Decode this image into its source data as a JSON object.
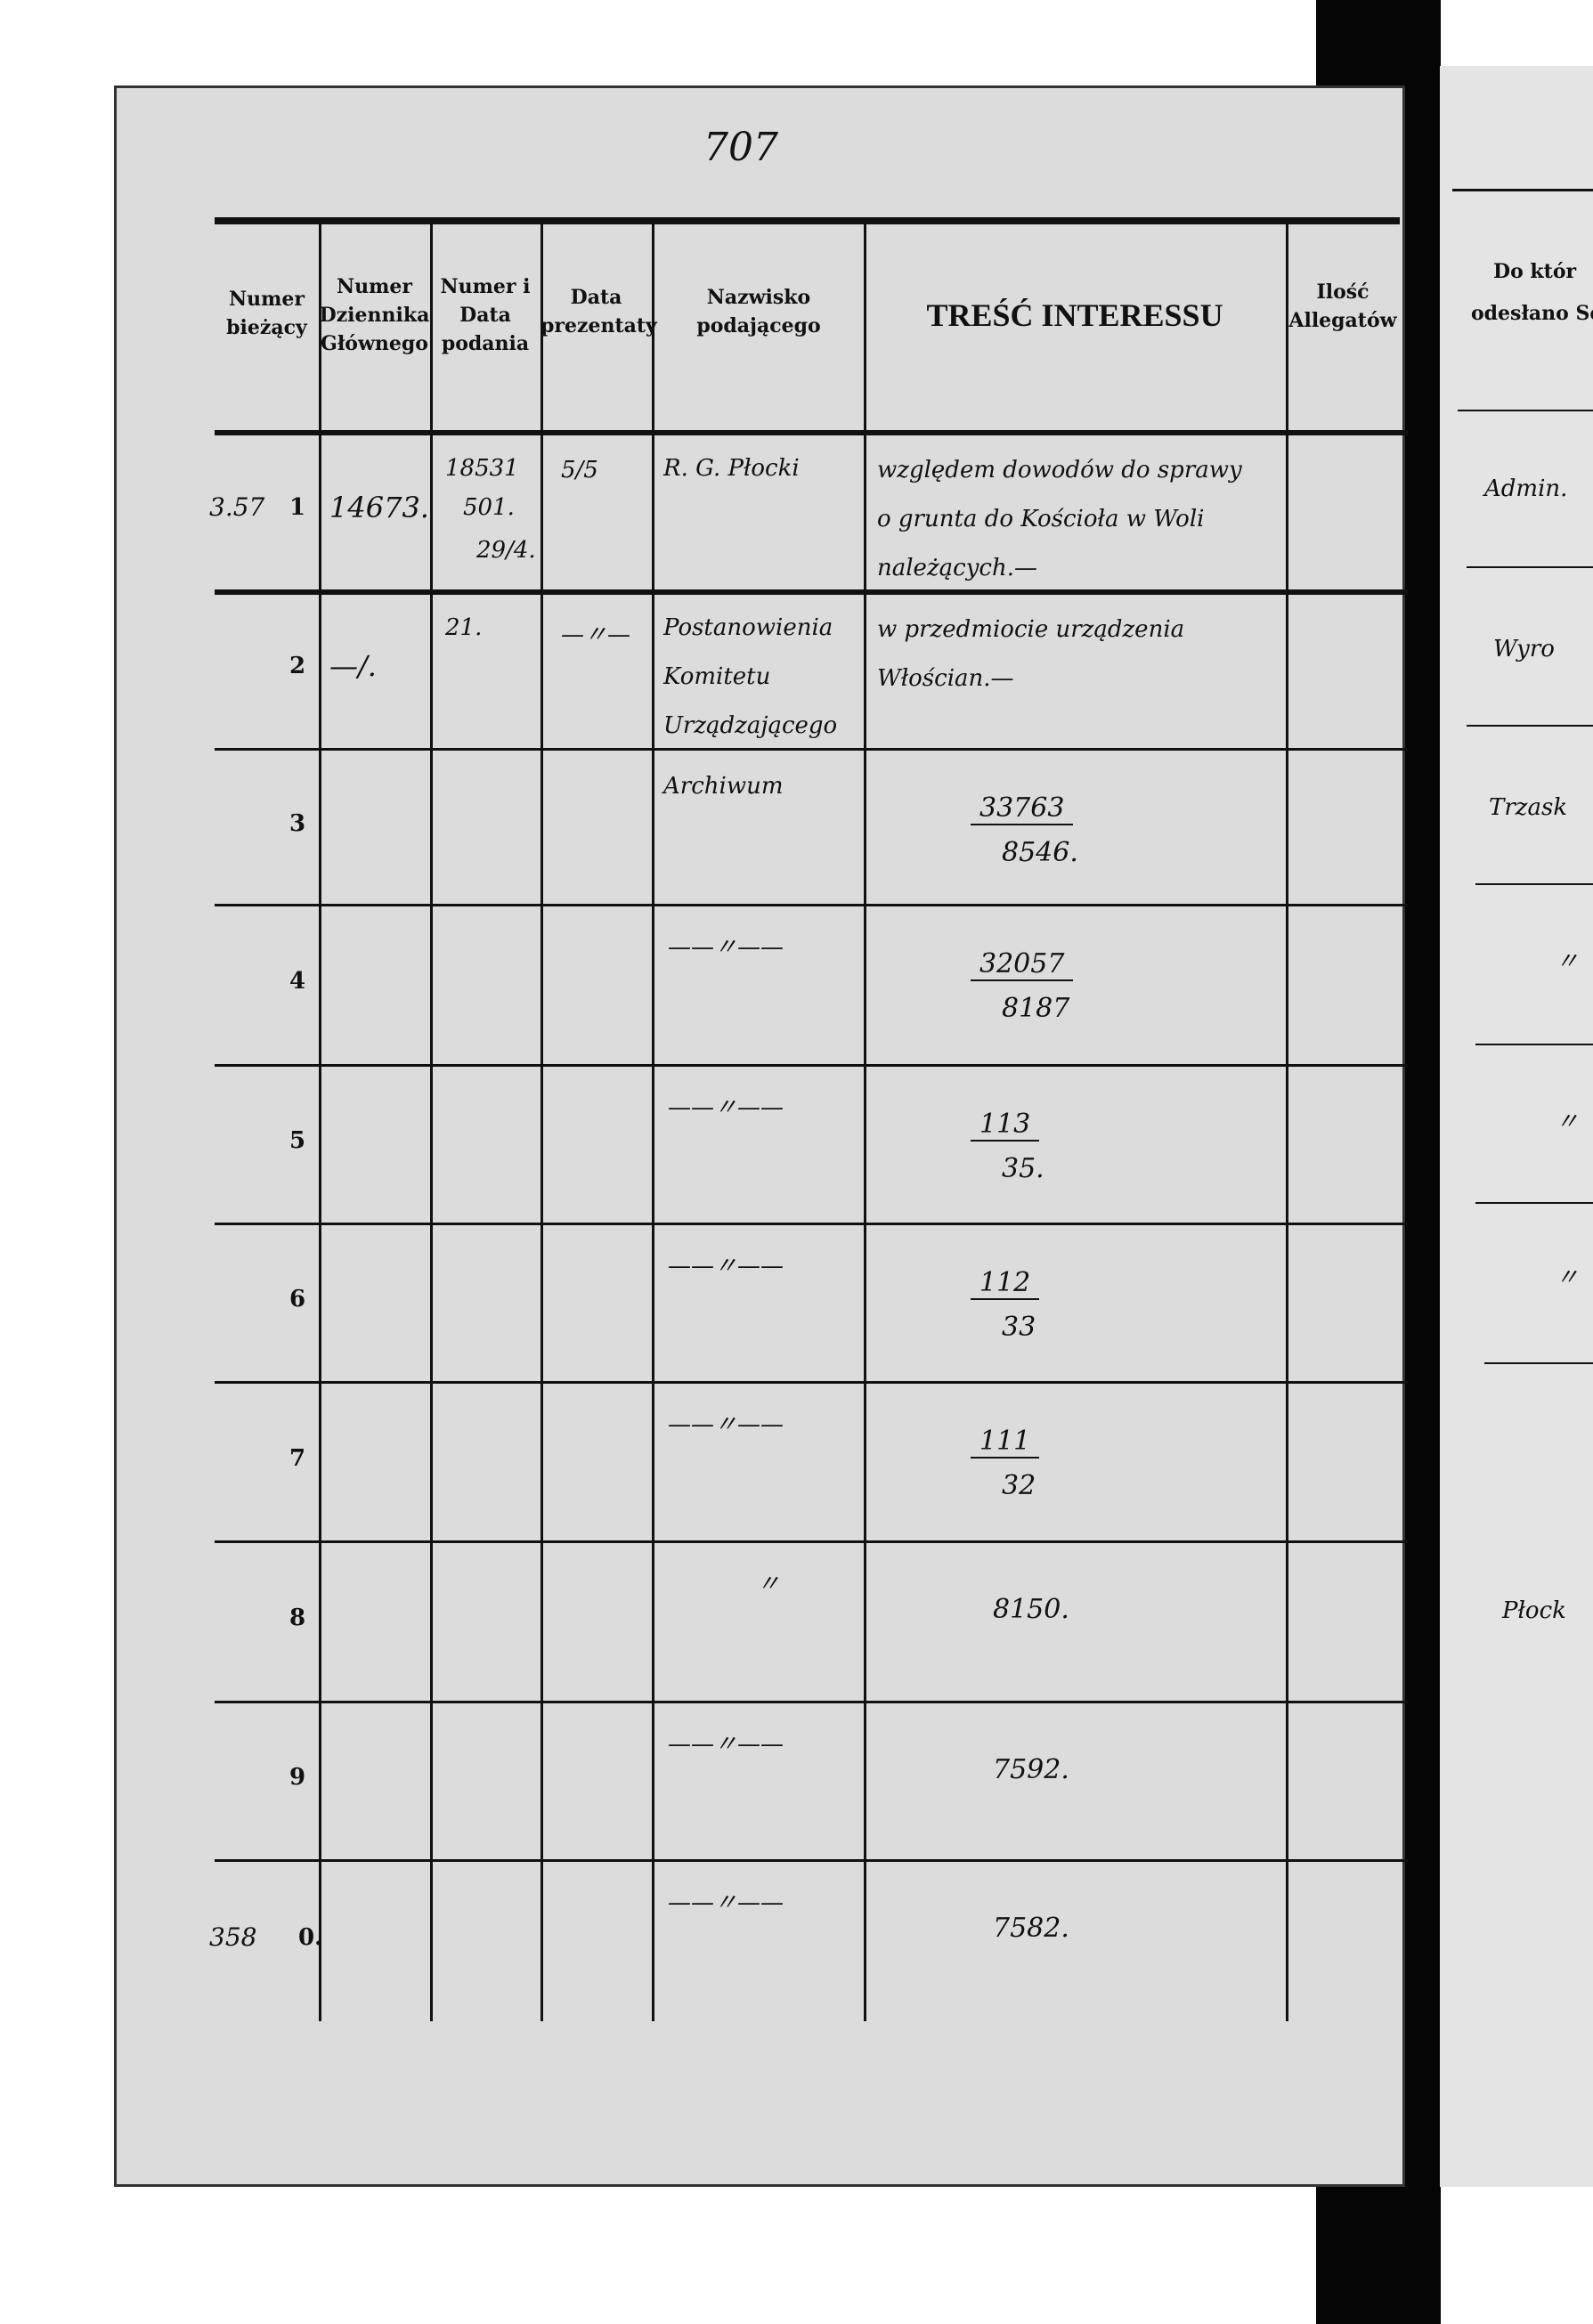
{
  "page_number": "707",
  "headers": {
    "c1": "Numer bieżący",
    "c2": "Numer Dziennika Głównego",
    "c3": "Numer i Data podania",
    "c4": "Data prezentaty",
    "c5": "Nazwisko podającego",
    "c6": "TREŚĆ INTERESSU",
    "c7": "Ilość Allegatów"
  },
  "rows": [
    {
      "margin": "3.57",
      "num": "1",
      "dziennik": "14673.",
      "podanie_top": "18531",
      "podanie_mid": "501.",
      "podanie_bot": "29/4.",
      "prezentata": "5/5",
      "nazwisko": [
        "R. G. Płocki"
      ],
      "tresc": [
        "względem dowodów do sprawy",
        "o grunta do Kościoła w Woli",
        "należących.—"
      ]
    },
    {
      "num": "2",
      "dziennik": "—/.",
      "podanie_top": "21.",
      "prezentata": "—〃—",
      "nazwisko": [
        "Postanowienia",
        "Komitetu",
        "Urządzającego"
      ],
      "tresc": [
        "w przedmiocie urządzenia",
        "Włościan.—"
      ]
    },
    {
      "num": "3",
      "nazwisko": [
        "Archiwum"
      ],
      "frac_top": "33763",
      "frac_bot": "8546."
    },
    {
      "num": "4",
      "nazwisko": [
        "——〃——"
      ],
      "frac_top": "32057",
      "frac_bot": "8187"
    },
    {
      "num": "5",
      "nazwisko": [
        "——〃——"
      ],
      "frac_top": "113",
      "frac_bot": "35."
    },
    {
      "num": "6",
      "nazwisko": [
        "——〃——"
      ],
      "frac_top": "112",
      "frac_bot": "33"
    },
    {
      "num": "7",
      "nazwisko": [
        "——〃——"
      ],
      "frac_top": "111",
      "frac_bot": "32"
    },
    {
      "num": "8",
      "nazwisko": [
        "〃"
      ],
      "value": "8150."
    },
    {
      "num": "9",
      "nazwisko": [
        "——〃——"
      ],
      "value": "7592."
    },
    {
      "margin": "358",
      "num": "0.",
      "nazwisko": [
        "——〃——"
      ],
      "value": "7582."
    }
  ],
  "right_page": {
    "header_line1": "Do któr",
    "header_line2": "odesłano Se",
    "entries": [
      "Admin.",
      "Wyro",
      "Trzask",
      "〃",
      "〃",
      "〃",
      "Płock"
    ]
  }
}
